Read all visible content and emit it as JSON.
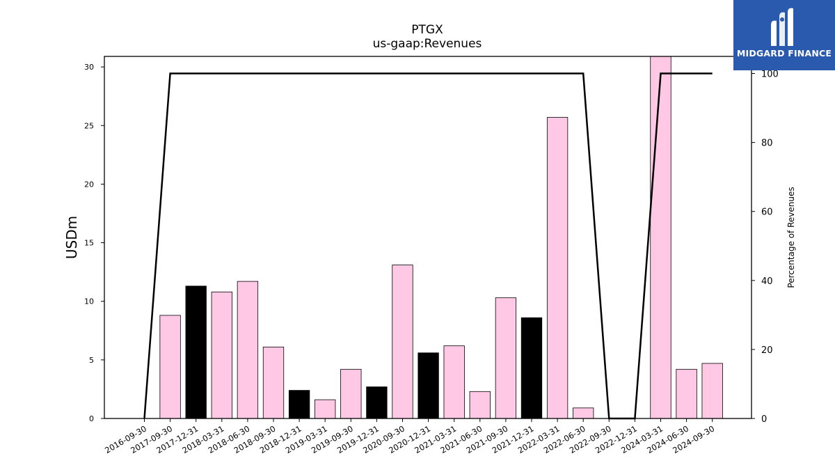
{
  "chart_data": {
    "type": "bar",
    "title": "PTGX",
    "subtitle": "us-gaap:Revenues",
    "ylabel": "USDm",
    "y2label": "Percentage of Revenues",
    "ylim": [
      0,
      30.9
    ],
    "y2lim": [
      0,
      100
    ],
    "yticks": [
      0,
      5,
      10,
      15,
      20,
      25,
      30
    ],
    "y2ticks": [
      0,
      20,
      40,
      60,
      80,
      100
    ],
    "categories": [
      "2016-09-30",
      "2017-09-30",
      "2017-12-31",
      "2018-03-31",
      "2018-06-30",
      "2018-09-30",
      "2018-12-31",
      "2019-03-31",
      "2019-09-30",
      "2019-12-31",
      "2020-09-30",
      "2020-12-31",
      "2021-03-31",
      "2021-06-30",
      "2021-09-30",
      "2021-12-31",
      "2022-03-31",
      "2022-06-30",
      "2022-09-30",
      "2022-12-31",
      "2024-03-31",
      "2024-06-30",
      "2024-09-30"
    ],
    "series": [
      {
        "type": "bar",
        "values": [
          0,
          8.8,
          11.3,
          10.8,
          11.7,
          6.1,
          2.4,
          1.6,
          4.2,
          2.7,
          13.1,
          5.6,
          6.2,
          2.3,
          10.3,
          8.6,
          25.7,
          0.9,
          0,
          0,
          31.0,
          4.2,
          4.7
        ],
        "colors": [
          "#ffc8e4",
          "#ffc8e4",
          "#000000",
          "#ffc8e4",
          "#ffc8e4",
          "#ffc8e4",
          "#000000",
          "#ffc8e4",
          "#ffc8e4",
          "#000000",
          "#ffc8e4",
          "#000000",
          "#ffc8e4",
          "#ffc8e4",
          "#ffc8e4",
          "#000000",
          "#ffc8e4",
          "#ffc8e4",
          "#ffc8e4",
          "#ffc8e4",
          "#ffc8e4",
          "#ffc8e4",
          "#ffc8e4"
        ]
      },
      {
        "type": "line",
        "axis": "right",
        "color": "#000000",
        "values": [
          0,
          100,
          100,
          100,
          100,
          100,
          100,
          100,
          100,
          100,
          100,
          100,
          100,
          100,
          100,
          100,
          100,
          100,
          0,
          0,
          100,
          100,
          100
        ]
      }
    ],
    "grid": false,
    "legend": "none"
  },
  "logo": {
    "text": "MIDGARD FINANCE",
    "color": "#2a5aad"
  }
}
